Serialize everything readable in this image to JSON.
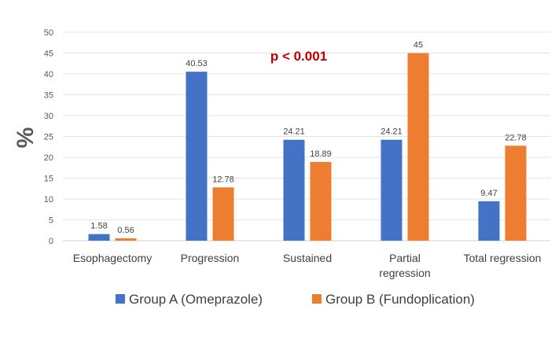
{
  "chart_data": {
    "type": "bar",
    "title": "",
    "ylabel": "%",
    "xlabel": "",
    "ylim": [
      0,
      50
    ],
    "yticks": [
      0,
      5,
      10,
      15,
      20,
      25,
      30,
      35,
      40,
      45,
      50
    ],
    "grid": true,
    "legend_placement": "bottom",
    "categories": [
      [
        "Esophagectomy"
      ],
      [
        "Progression"
      ],
      [
        "Sustained"
      ],
      [
        "Partial",
        "regression"
      ],
      [
        "Total regression"
      ]
    ],
    "series": [
      {
        "name": "Group A (Omeprazole)",
        "color": "#4472c4",
        "values": [
          1.58,
          40.53,
          24.21,
          24.21,
          9.47
        ],
        "labels": [
          "1.58",
          "40.53",
          "24.21",
          "24.21",
          "9.47"
        ]
      },
      {
        "name": "Group B (Fundoplication)",
        "color": "#ed7d31",
        "values": [
          0.56,
          12.78,
          18.89,
          45,
          22.78
        ],
        "labels": [
          "0.56",
          "12.78",
          "18.89",
          "45",
          "22.78"
        ]
      }
    ],
    "annotation": {
      "text": "p < 0.001",
      "color": "#c00000"
    }
  }
}
